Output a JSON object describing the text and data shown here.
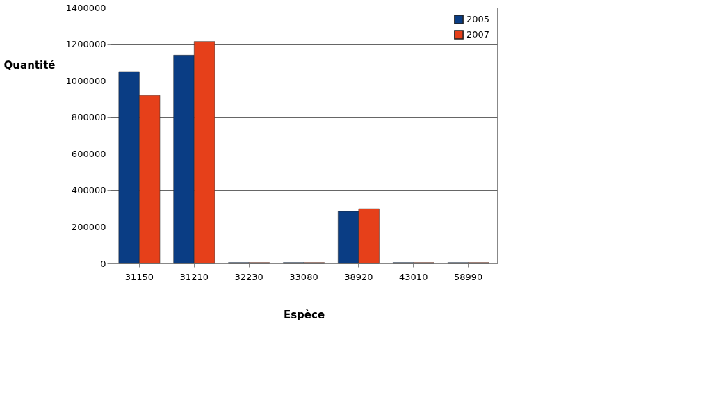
{
  "chart_data": {
    "type": "bar",
    "xlabel": "Espèce",
    "ylabel": "Quantité",
    "categories": [
      "31150",
      "31210",
      "32230",
      "33080",
      "38920",
      "43010",
      "58990"
    ],
    "series": [
      {
        "name": "2005",
        "color": "#0a3d84",
        "values": [
          1050000,
          1140000,
          5000,
          5000,
          285000,
          5000,
          5000
        ]
      },
      {
        "name": "2007",
        "color": "#e6401a",
        "values": [
          920000,
          1215000,
          5000,
          5000,
          300000,
          5000,
          5000
        ]
      }
    ],
    "ylim": [
      0,
      1400000
    ],
    "yticks": [
      0,
      200000,
      400000,
      600000,
      800000,
      1000000,
      1200000,
      1400000
    ],
    "grid": "y",
    "legend": "top right"
  }
}
